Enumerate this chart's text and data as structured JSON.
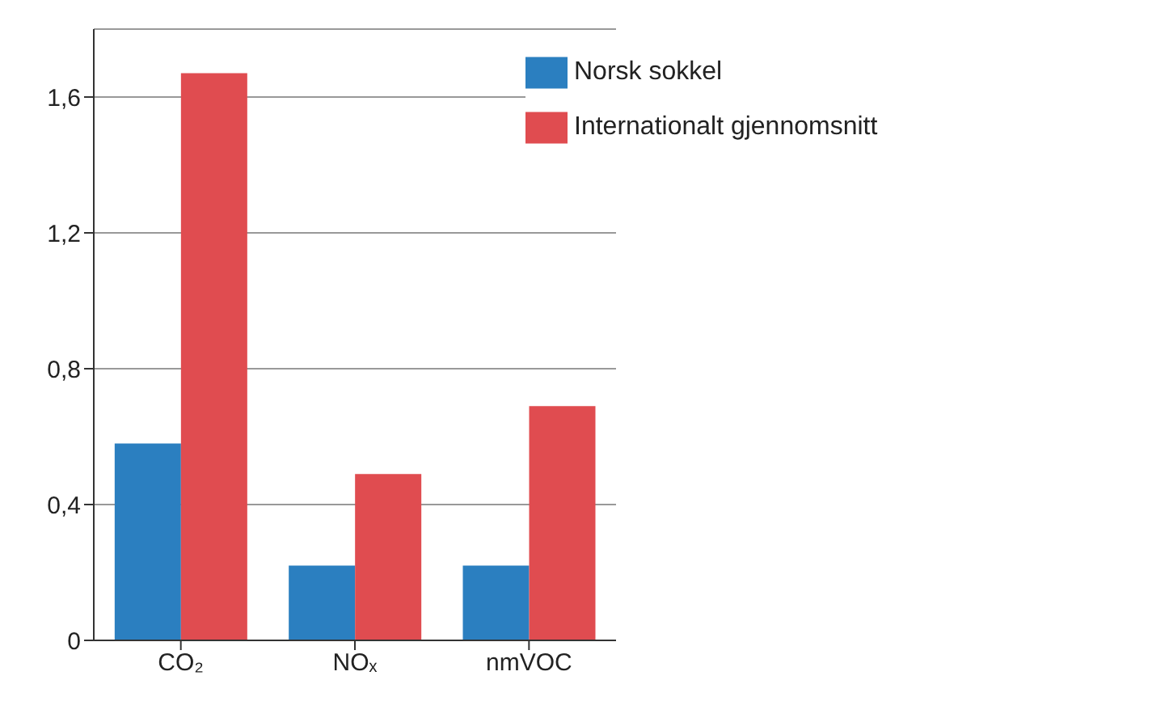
{
  "chart_data": {
    "type": "bar",
    "categories": [
      "CO₂",
      "NOₓ",
      "nmVOC"
    ],
    "series": [
      {
        "name": "Norsk sokkel",
        "color": "#2b7fc0",
        "values": [
          0.58,
          0.22,
          0.22
        ]
      },
      {
        "name": "Internationalt gjennomsnitt",
        "color": "#e04c50",
        "values": [
          1.67,
          0.49,
          0.69
        ]
      }
    ],
    "ylim": [
      0,
      1.8
    ],
    "yticks": [
      0,
      {
        "value": 0.4,
        "label": "0,4"
      },
      {
        "value": 0.8,
        "label": "0,8"
      },
      {
        "value": 1.2,
        "label": "1,2"
      },
      {
        "value": 1.6,
        "label": "1,6"
      }
    ],
    "grid": "y",
    "legend": "top right"
  }
}
